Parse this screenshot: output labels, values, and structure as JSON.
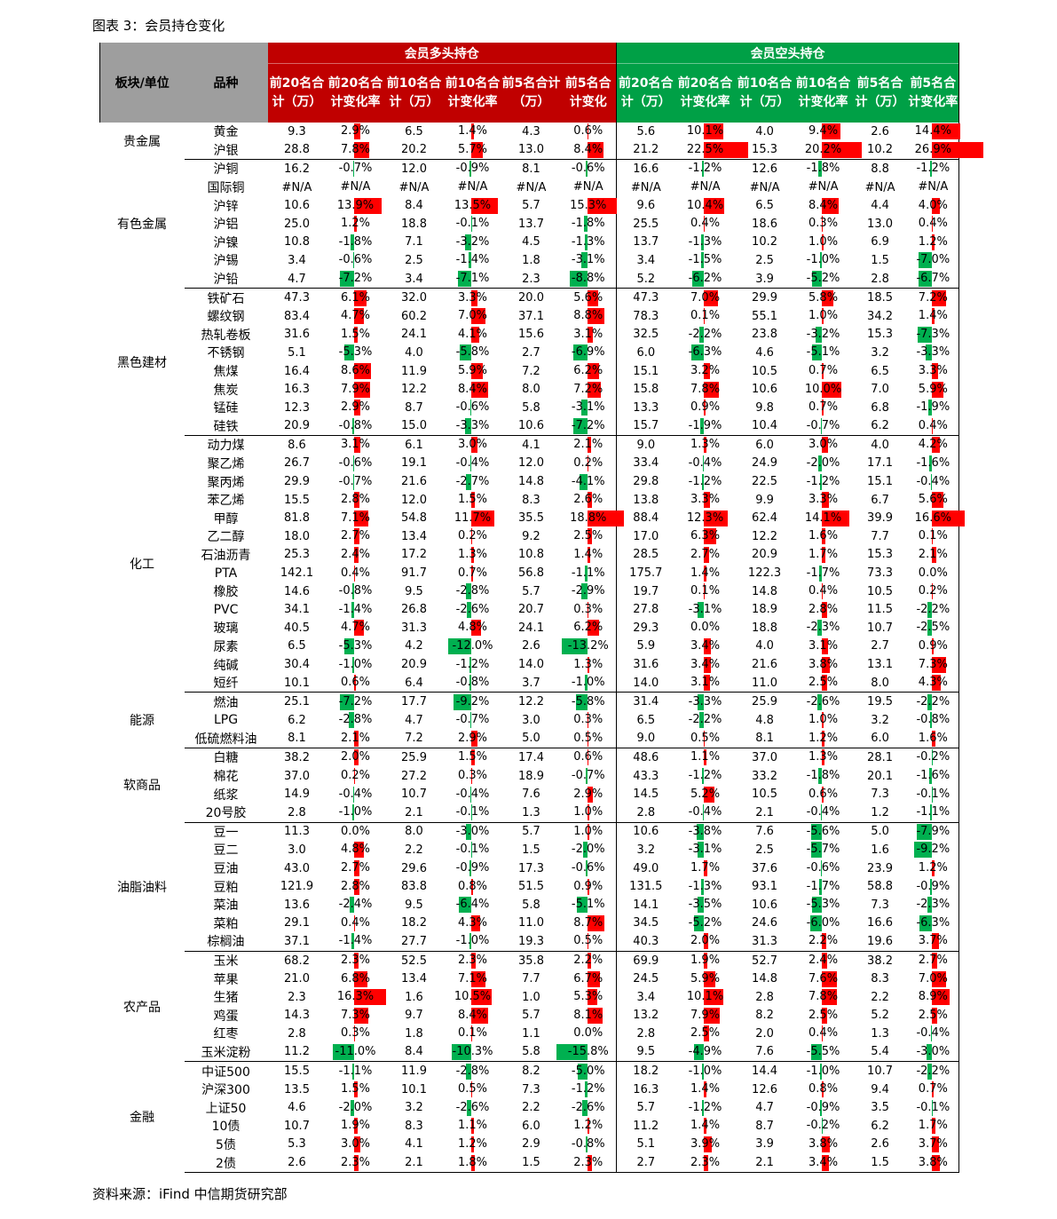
{
  "figure_title": "图表 3：会员持仓变化",
  "source": "资料来源：iFind  中信期货研究部",
  "colors": {
    "long_header": "#c00000",
    "short_header": "#00a046",
    "bar_pos": "#ff0000",
    "bar_neg": "#00b050",
    "gray_header": "#9e9e9e"
  },
  "header": {
    "sector": "板块/单位",
    "product": "品种",
    "long_group": "会员多头持仓",
    "short_group": "会员空头持仓",
    "long_cols": [
      "前20名合计（万）",
      "前20名合计变化率",
      "前10名合计（万）",
      "前10名合计变化率",
      "前5名合计（万）",
      "前5名合计变化"
    ],
    "short_cols": [
      "前20名合计（万）",
      "前20名合计变化率",
      "前10名合计（万）",
      "前10名合计变化率",
      "前5名合计（万）",
      "前5名合计变化率"
    ]
  },
  "sectors": [
    {
      "name": "贵金属",
      "rows": [
        [
          "黄金",
          "9.3",
          "2.9%",
          "6.5",
          "1.4%",
          "4.3",
          "0.6%",
          "5.6",
          "10.1%",
          "4.0",
          "9.4%",
          "2.6",
          "14.4%"
        ],
        [
          "沪银",
          "28.8",
          "7.8%",
          "20.2",
          "5.7%",
          "13.0",
          "8.4%",
          "21.2",
          "22.5%",
          "15.3",
          "20.2%",
          "10.2",
          "26.9%"
        ]
      ]
    },
    {
      "name": "有色金属",
      "rows": [
        [
          "沪铜",
          "16.2",
          "-0.7%",
          "12.0",
          "-0.9%",
          "8.1",
          "-0.6%",
          "16.6",
          "-1.2%",
          "12.6",
          "-1.8%",
          "8.8",
          "-1.2%"
        ],
        [
          "国际铜",
          "#N/A",
          "#N/A",
          "#N/A",
          "#N/A",
          "#N/A",
          "#N/A",
          "#N/A",
          "#N/A",
          "#N/A",
          "#N/A",
          "#N/A",
          "#N/A"
        ],
        [
          "沪锌",
          "10.6",
          "13.9%",
          "8.4",
          "13.5%",
          "5.7",
          "15.3%",
          "9.6",
          "10.4%",
          "6.5",
          "8.4%",
          "4.4",
          "4.0%"
        ],
        [
          "沪铝",
          "25.0",
          "1.2%",
          "18.8",
          "-0.1%",
          "13.7",
          "-1.8%",
          "25.5",
          "0.4%",
          "18.6",
          "0.3%",
          "13.0",
          "0.4%"
        ],
        [
          "沪镍",
          "10.8",
          "-1.8%",
          "7.1",
          "-3.2%",
          "4.5",
          "-1.3%",
          "13.7",
          "-1.3%",
          "10.2",
          "1.0%",
          "6.9",
          "1.2%"
        ],
        [
          "沪锡",
          "3.4",
          "-0.6%",
          "2.5",
          "-1.4%",
          "1.8",
          "-3.1%",
          "3.4",
          "-1.5%",
          "2.5",
          "-1.0%",
          "1.5",
          "-7.0%"
        ],
        [
          "沪铅",
          "4.7",
          "-7.2%",
          "3.4",
          "-7.1%",
          "2.3",
          "-8.8%",
          "5.2",
          "-6.2%",
          "3.9",
          "-5.2%",
          "2.8",
          "-6.7%"
        ]
      ]
    },
    {
      "name": "黑色建材",
      "rows": [
        [
          "铁矿石",
          "47.3",
          "6.1%",
          "32.0",
          "3.3%",
          "20.0",
          "5.6%",
          "47.3",
          "7.0%",
          "29.9",
          "5.8%",
          "18.5",
          "7.2%"
        ],
        [
          "螺纹钢",
          "83.4",
          "4.7%",
          "60.2",
          "7.0%",
          "37.1",
          "8.8%",
          "78.3",
          "0.1%",
          "55.1",
          "1.0%",
          "34.2",
          "1.4%"
        ],
        [
          "热轧卷板",
          "31.6",
          "1.5%",
          "24.1",
          "4.1%",
          "15.6",
          "3.1%",
          "32.5",
          "-2.2%",
          "23.8",
          "-3.2%",
          "15.3",
          "-7.3%"
        ],
        [
          "不锈钢",
          "5.1",
          "-5.3%",
          "4.0",
          "-5.8%",
          "2.7",
          "-6.9%",
          "6.0",
          "-6.3%",
          "4.6",
          "-5.1%",
          "3.2",
          "-3.3%"
        ],
        [
          "焦煤",
          "16.4",
          "8.6%",
          "11.9",
          "5.9%",
          "7.2",
          "6.2%",
          "15.1",
          "3.2%",
          "10.5",
          "0.7%",
          "6.5",
          "3.3%"
        ],
        [
          "焦炭",
          "16.3",
          "7.9%",
          "12.2",
          "8.4%",
          "8.0",
          "7.2%",
          "15.8",
          "7.8%",
          "10.6",
          "10.0%",
          "7.0",
          "5.9%"
        ],
        [
          "锰硅",
          "12.3",
          "2.9%",
          "8.7",
          "-0.6%",
          "5.8",
          "-3.1%",
          "13.3",
          "0.9%",
          "9.8",
          "0.7%",
          "6.8",
          "-1.9%"
        ],
        [
          "硅铁",
          "20.9",
          "-0.8%",
          "15.0",
          "-3.3%",
          "10.6",
          "-7.2%",
          "15.7",
          "-1.9%",
          "10.4",
          "-0.7%",
          "6.2",
          "0.4%"
        ]
      ]
    },
    {
      "name": "化工",
      "rows": [
        [
          "动力煤",
          "8.6",
          "3.1%",
          "6.1",
          "3.0%",
          "4.1",
          "2.1%",
          "9.0",
          "1.3%",
          "6.0",
          "3.0%",
          "4.0",
          "4.2%"
        ],
        [
          "聚乙烯",
          "26.7",
          "-0.6%",
          "19.1",
          "-0.4%",
          "12.0",
          "0.2%",
          "33.4",
          "-0.4%",
          "24.9",
          "-2.0%",
          "17.1",
          "-1.6%"
        ],
        [
          "聚丙烯",
          "29.9",
          "-0.7%",
          "21.6",
          "-2.7%",
          "14.8",
          "-4.1%",
          "29.8",
          "-1.2%",
          "22.5",
          "-1.2%",
          "15.1",
          "-0.4%"
        ],
        [
          "苯乙烯",
          "15.5",
          "2.8%",
          "12.0",
          "1.5%",
          "8.3",
          "2.6%",
          "13.8",
          "3.3%",
          "9.9",
          "3.3%",
          "6.7",
          "5.6%"
        ],
        [
          "甲醇",
          "81.8",
          "7.1%",
          "54.8",
          "11.7%",
          "35.5",
          "18.8%",
          "88.4",
          "12.3%",
          "62.4",
          "14.1%",
          "39.9",
          "16.6%"
        ],
        [
          "乙二醇",
          "18.0",
          "2.7%",
          "13.4",
          "0.2%",
          "9.2",
          "2.5%",
          "17.0",
          "6.3%",
          "12.2",
          "1.6%",
          "7.7",
          "0.1%"
        ],
        [
          "石油沥青",
          "25.3",
          "2.4%",
          "17.2",
          "1.3%",
          "10.8",
          "1.4%",
          "28.5",
          "2.7%",
          "20.9",
          "1.7%",
          "15.3",
          "2.1%"
        ],
        [
          "PTA",
          "142.1",
          "0.4%",
          "91.7",
          "0.7%",
          "56.8",
          "-1.1%",
          "175.7",
          "1.4%",
          "122.3",
          "-1.7%",
          "73.3",
          "0.0%"
        ],
        [
          "橡胶",
          "14.6",
          "-0.8%",
          "9.5",
          "-2.8%",
          "5.7",
          "-2.9%",
          "19.7",
          "0.1%",
          "14.8",
          "0.4%",
          "10.5",
          "0.2%"
        ],
        [
          "PVC",
          "34.1",
          "-1.4%",
          "26.8",
          "-2.6%",
          "20.7",
          "0.3%",
          "27.8",
          "-3.1%",
          "18.9",
          "2.8%",
          "11.5",
          "-2.2%"
        ],
        [
          "玻璃",
          "40.5",
          "4.7%",
          "31.3",
          "4.8%",
          "24.1",
          "6.2%",
          "29.3",
          "0.0%",
          "18.8",
          "-2.3%",
          "10.7",
          "-2.5%"
        ],
        [
          "尿素",
          "6.5",
          "-5.3%",
          "4.2",
          "-12.0%",
          "2.6",
          "-13.2%",
          "5.9",
          "3.4%",
          "4.0",
          "3.1%",
          "2.7",
          "0.9%"
        ],
        [
          "纯碱",
          "30.4",
          "-1.0%",
          "20.9",
          "-1.2%",
          "14.0",
          "1.3%",
          "31.6",
          "3.4%",
          "21.6",
          "3.8%",
          "13.1",
          "7.3%"
        ],
        [
          "短纤",
          "10.1",
          "0.6%",
          "6.4",
          "-0.8%",
          "3.7",
          "-1.0%",
          "14.0",
          "3.1%",
          "11.0",
          "2.5%",
          "8.0",
          "4.3%"
        ]
      ]
    },
    {
      "name": "能源",
      "rows": [
        [
          "燃油",
          "25.1",
          "-7.2%",
          "17.7",
          "-9.2%",
          "12.2",
          "-5.8%",
          "31.4",
          "-3.3%",
          "25.9",
          "-2.6%",
          "19.5",
          "-2.2%"
        ],
        [
          "LPG",
          "6.2",
          "-2.8%",
          "4.7",
          "-0.7%",
          "3.0",
          "0.3%",
          "6.5",
          "-2.2%",
          "4.8",
          "1.0%",
          "3.2",
          "-0.8%"
        ],
        [
          "低硫燃料油",
          "8.1",
          "2.1%",
          "7.2",
          "2.9%",
          "5.0",
          "0.5%",
          "9.0",
          "0.5%",
          "8.1",
          "1.2%",
          "6.0",
          "1.6%"
        ]
      ]
    },
    {
      "name": "软商品",
      "rows": [
        [
          "白糖",
          "38.2",
          "2.0%",
          "25.9",
          "1.5%",
          "17.4",
          "0.6%",
          "48.6",
          "1.1%",
          "37.0",
          "1.3%",
          "28.1",
          "-0.2%"
        ],
        [
          "棉花",
          "37.0",
          "0.2%",
          "27.2",
          "0.3%",
          "18.9",
          "-0.7%",
          "43.3",
          "-1.2%",
          "33.2",
          "-1.8%",
          "20.1",
          "-1.6%"
        ],
        [
          "纸浆",
          "14.9",
          "-0.4%",
          "10.7",
          "-0.4%",
          "7.6",
          "2.9%",
          "14.5",
          "5.2%",
          "10.5",
          "0.6%",
          "7.3",
          "-0.1%"
        ],
        [
          "20号胶",
          "2.8",
          "-1.0%",
          "2.1",
          "-0.1%",
          "1.3",
          "1.0%",
          "2.8",
          "-0.4%",
          "2.1",
          "-0.4%",
          "1.2",
          "-1.1%"
        ]
      ]
    },
    {
      "name": "油脂油料",
      "rows": [
        [
          "豆一",
          "11.3",
          "0.0%",
          "8.0",
          "-3.0%",
          "5.7",
          "1.0%",
          "10.6",
          "-3.8%",
          "7.6",
          "-5.6%",
          "5.0",
          "-7.9%"
        ],
        [
          "豆二",
          "3.0",
          "4.8%",
          "2.2",
          "-0.1%",
          "1.5",
          "-2.0%",
          "3.2",
          "-3.1%",
          "2.5",
          "-5.7%",
          "1.6",
          "-9.2%"
        ],
        [
          "豆油",
          "43.0",
          "2.7%",
          "29.6",
          "-0.9%",
          "17.3",
          "-0.6%",
          "49.0",
          "1.7%",
          "37.6",
          "-0.6%",
          "23.9",
          "1.2%"
        ],
        [
          "豆粕",
          "121.9",
          "2.8%",
          "83.8",
          "0.8%",
          "51.5",
          "0.9%",
          "131.5",
          "-1.3%",
          "93.1",
          "-1.7%",
          "58.8",
          "-0.9%"
        ],
        [
          "菜油",
          "13.6",
          "-2.4%",
          "9.5",
          "-6.4%",
          "5.8",
          "-5.1%",
          "14.1",
          "-3.5%",
          "10.6",
          "-5.3%",
          "7.3",
          "-2.3%"
        ],
        [
          "菜粕",
          "29.1",
          "0.4%",
          "18.2",
          "4.3%",
          "11.0",
          "8.7%",
          "34.5",
          "-5.2%",
          "24.6",
          "-6.0%",
          "16.6",
          "-6.3%"
        ],
        [
          "棕榈油",
          "37.1",
          "-1.4%",
          "27.7",
          "-1.0%",
          "19.3",
          "0.5%",
          "40.3",
          "2.0%",
          "31.3",
          "2.2%",
          "19.6",
          "3.7%"
        ]
      ]
    },
    {
      "name": "农产品",
      "rows": [
        [
          "玉米",
          "68.2",
          "2.3%",
          "52.5",
          "2.3%",
          "35.8",
          "2.2%",
          "69.9",
          "1.9%",
          "52.7",
          "2.4%",
          "38.2",
          "2.7%"
        ],
        [
          "苹果",
          "21.0",
          "6.8%",
          "13.4",
          "7.1%",
          "7.7",
          "6.7%",
          "24.5",
          "5.9%",
          "14.8",
          "7.6%",
          "8.3",
          "7.0%"
        ],
        [
          "生猪",
          "2.3",
          "16.3%",
          "1.6",
          "10.5%",
          "1.0",
          "5.3%",
          "3.4",
          "10.1%",
          "2.8",
          "7.8%",
          "2.2",
          "8.9%"
        ],
        [
          "鸡蛋",
          "14.3",
          "7.3%",
          "9.7",
          "8.4%",
          "5.7",
          "8.1%",
          "13.2",
          "7.9%",
          "8.2",
          "2.5%",
          "5.2",
          "2.5%"
        ],
        [
          "红枣",
          "2.8",
          "0.3%",
          "1.8",
          "0.1%",
          "1.1",
          "0.0%",
          "2.8",
          "2.5%",
          "2.0",
          "0.4%",
          "1.3",
          "-0.4%"
        ],
        [
          "玉米淀粉",
          "11.2",
          "-11.0%",
          "8.4",
          "-10.3%",
          "5.8",
          "-15.8%",
          "9.5",
          "-4.9%",
          "7.6",
          "-5.5%",
          "5.4",
          "-3.0%"
        ]
      ]
    },
    {
      "name": "金融",
      "rows": [
        [
          "中证500",
          "15.5",
          "-1.1%",
          "11.9",
          "-2.8%",
          "8.2",
          "-5.0%",
          "18.2",
          "-1.0%",
          "14.4",
          "-1.0%",
          "10.7",
          "-2.2%"
        ],
        [
          "沪深300",
          "13.5",
          "1.5%",
          "10.1",
          "0.5%",
          "7.3",
          "-1.2%",
          "16.3",
          "1.4%",
          "12.6",
          "0.8%",
          "9.4",
          "0.7%"
        ],
        [
          "上证50",
          "4.6",
          "-2.0%",
          "3.2",
          "-2.6%",
          "2.2",
          "-2.6%",
          "5.7",
          "-1.2%",
          "4.7",
          "-0.9%",
          "3.5",
          "-0.1%"
        ],
        [
          "10债",
          "10.7",
          "1.9%",
          "8.3",
          "1.1%",
          "6.0",
          "1.2%",
          "11.2",
          "1.4%",
          "8.7",
          "-0.2%",
          "6.2",
          "1.7%"
        ],
        [
          "5债",
          "5.3",
          "3.0%",
          "4.1",
          "1.2%",
          "2.9",
          "-0.8%",
          "5.1",
          "3.9%",
          "3.9",
          "3.8%",
          "2.6",
          "3.7%"
        ],
        [
          "2债",
          "2.6",
          "2.3%",
          "2.1",
          "1.8%",
          "1.5",
          "2.3%",
          "2.7",
          "2.3%",
          "2.1",
          "3.4%",
          "1.5",
          "3.8%"
        ]
      ]
    }
  ]
}
